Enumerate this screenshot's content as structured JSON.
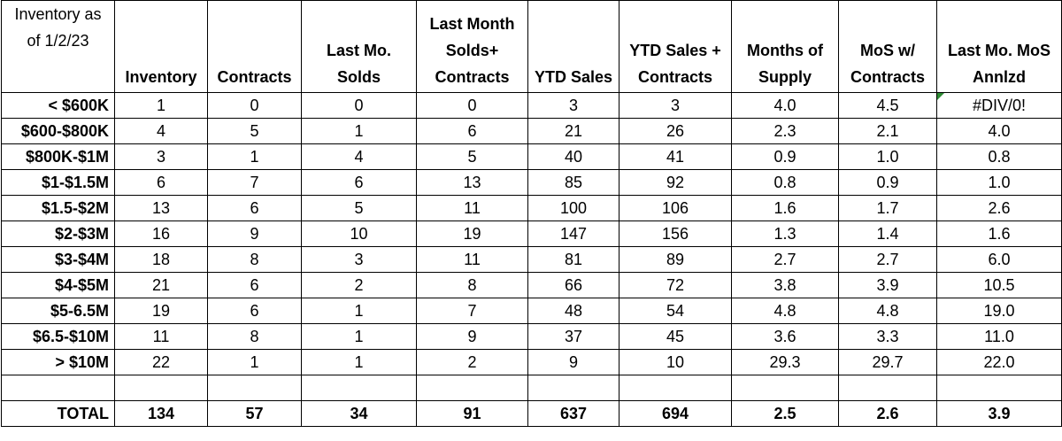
{
  "headers": [
    "Inventory as of 1/2/23",
    "Inventory",
    "Contracts",
    "Last Mo. Solds",
    "Last Month Solds+ Contracts",
    "YTD Sales",
    "YTD Sales + Contracts",
    "Months of Supply",
    "MoS w/ Contracts",
    "Last Mo. MoS Annlzd"
  ],
  "rows": [
    [
      "< $600K",
      "1",
      "0",
      "0",
      "0",
      "3",
      "3",
      "4.0",
      "4.5",
      "#DIV/0!"
    ],
    [
      "$600-$800K",
      "4",
      "5",
      "1",
      "6",
      "21",
      "26",
      "2.3",
      "2.1",
      "4.0"
    ],
    [
      "$800K-$1M",
      "3",
      "1",
      "4",
      "5",
      "40",
      "41",
      "0.9",
      "1.0",
      "0.8"
    ],
    [
      "$1-$1.5M",
      "6",
      "7",
      "6",
      "13",
      "85",
      "92",
      "0.8",
      "0.9",
      "1.0"
    ],
    [
      "$1.5-$2M",
      "13",
      "6",
      "5",
      "11",
      "100",
      "106",
      "1.6",
      "1.7",
      "2.6"
    ],
    [
      "$2-$3M",
      "16",
      "9",
      "10",
      "19",
      "147",
      "156",
      "1.3",
      "1.4",
      "1.6"
    ],
    [
      "$3-$4M",
      "18",
      "8",
      "3",
      "11",
      "81",
      "89",
      "2.7",
      "2.7",
      "6.0"
    ],
    [
      "$4-$5M",
      "21",
      "6",
      "2",
      "8",
      "66",
      "72",
      "3.8",
      "3.9",
      "10.5"
    ],
    [
      "$5-6.5M",
      "19",
      "6",
      "1",
      "7",
      "48",
      "54",
      "4.8",
      "4.8",
      "19.0"
    ],
    [
      "$6.5-$10M",
      "11",
      "8",
      "1",
      "9",
      "37",
      "45",
      "3.6",
      "3.3",
      "11.0"
    ],
    [
      "> $10M",
      "22",
      "1",
      "1",
      "2",
      "9",
      "10",
      "29.3",
      "29.7",
      "22.0"
    ]
  ],
  "total": [
    "TOTAL",
    "134",
    "57",
    "34",
    "91",
    "637",
    "694",
    "2.5",
    "2.6",
    "3.9"
  ],
  "colors": {
    "error_indicator": "#2e8b34",
    "grid": "#000000"
  }
}
